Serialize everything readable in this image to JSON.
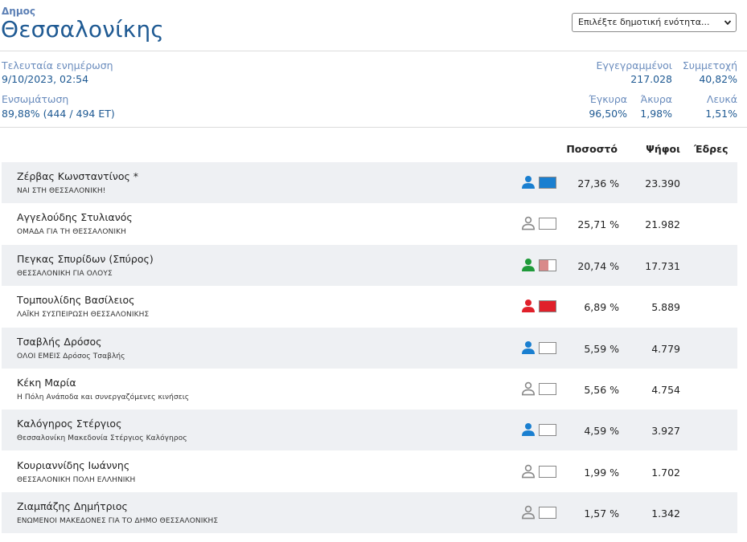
{
  "header": {
    "subtitle": "Δημος",
    "title": "Θεσσαλονίκης",
    "select_value": "Επιλέξτε δημοτική ενότητα..."
  },
  "stats": {
    "last_update_label": "Τελευταία ενημέρωση",
    "last_update_value": "9/10/2023, 02:54",
    "integration_label": "Ενσωμάτωση",
    "integration_value": "89,88% (444 / 494 ΕΤ)",
    "registered_label": "Εγγεγραμμένοι",
    "registered_value": "217.028",
    "turnout_label": "Συμμετοχή",
    "turnout_value": "40,82%",
    "valid_label": "Έγκυρα",
    "valid_value": "96,50%",
    "invalid_label": "Άκυρα",
    "invalid_value": "1,98%",
    "blank_label": "Λευκά",
    "blank_value": "1,51%"
  },
  "table": {
    "headers": {
      "percent": "Ποσοστό",
      "votes": "Ψήφοι",
      "seats": "Έδρες"
    },
    "rows": [
      {
        "name": "Ζέρβας Κωνσταντίνος *",
        "party": "ΝΑΙ ΣΤΗ ΘΕΣΣΑΛΟΝΙΚΗ!",
        "percent": "27,36 %",
        "votes": "23.390",
        "color": "#1a7fd0",
        "fill": 1.0,
        "shade": true
      },
      {
        "name": "Αγγελούδης Στυλιανός",
        "party": "ΟΜΑΔΑ ΓΙΑ ΤΗ ΘΕΣΣΑΛΟΝΙΚΗ",
        "percent": "25,71 %",
        "votes": "21.982",
        "color": "#9a9a9a",
        "fill": 0.0,
        "shade": false
      },
      {
        "name": "Πεγκας Σπυρίδων (Σπύρος)",
        "party": "ΘΕΣΣΑΛΟΝΙΚΗ ΓΙΑ ΟΛΟΥΣ",
        "percent": "20,74 %",
        "votes": "17.731",
        "color": "#1f9a3a",
        "fill": 0.55,
        "fill_color": "#d98a8a",
        "shade": true
      },
      {
        "name": "Τομπουλίδης Βασίλειος",
        "party": "ΛΑΪΚΗ ΣΥΣΠΕΙΡΩΣΗ ΘΕΣΣΑΛΟΝΙΚΗΣ",
        "percent": "6,89 %",
        "votes": "5.889",
        "color": "#e0202a",
        "fill": 1.0,
        "shade": false
      },
      {
        "name": "Τσαβλής Δρόσος",
        "party": "ΟΛΟΙ ΕΜΕΙΣ Δρόσος Τσαβλής",
        "percent": "5,59 %",
        "votes": "4.779",
        "color": "#1a7fd0",
        "fill": 0.0,
        "shade": true
      },
      {
        "name": "Κέκη Μαρία",
        "party": "Η Πόλη Ανάποδα και συνεργαζόμενες κινήσεις",
        "percent": "5,56 %",
        "votes": "4.754",
        "color": "#9a9a9a",
        "fill": 0.0,
        "shade": false
      },
      {
        "name": "Καλόγηρος Στέργιος",
        "party": "Θεσσαλονίκη Μακεδονία Στέργιος Καλόγηρος",
        "percent": "4,59 %",
        "votes": "3.927",
        "color": "#1a7fd0",
        "fill": 0.0,
        "shade": true
      },
      {
        "name": "Κουριαννίδης Ιωάννης",
        "party": "ΘΕΣΣΑΛΟΝΙΚΗ ΠΟΛΗ ΕΛΛΗΝΙΚΗ",
        "percent": "1,99 %",
        "votes": "1.702",
        "color": "#9a9a9a",
        "fill": 0.0,
        "shade": false
      },
      {
        "name": "Ζιαμπάζης Δημήτριος",
        "party": "ΕΝΩΜΕΝΟΙ ΜΑΚΕΔΟΝΕΣ ΓΙΑ ΤΟ ΔΗΜΟ ΘΕΣΣΑΛΟΝΙΚΗΣ",
        "percent": "1,57 %",
        "votes": "1.342",
        "color": "#9a9a9a",
        "fill": 0.0,
        "shade": true
      }
    ]
  }
}
